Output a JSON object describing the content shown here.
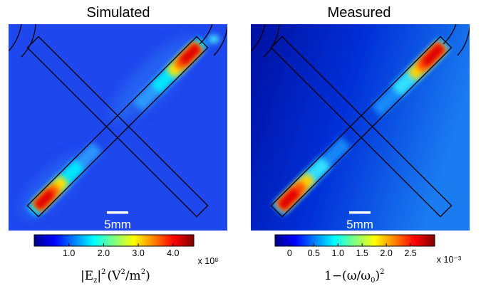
{
  "panels": [
    {
      "title": "Simulated",
      "scale_bar_label": "5mm",
      "colorbar": {
        "colors": [
          "#00008f",
          "#0000ff",
          "#0080ff",
          "#00ffff",
          "#80ff80",
          "#ffff00",
          "#ff8000",
          "#ff0000",
          "#800000"
        ],
        "ticks": [
          "1.0",
          "2.0",
          "3.0",
          "4.0"
        ],
        "tick_values": [
          1.0,
          2.0,
          3.0,
          4.0
        ],
        "range": [
          0,
          4.6
        ],
        "exponent": "x 10⁸"
      },
      "formula_parts": [
        "|E",
        "z",
        "|",
        "2",
        "(V",
        "2",
        "/m",
        "2",
        ")"
      ]
    },
    {
      "title": "Measured",
      "scale_bar_label": "5mm",
      "colorbar": {
        "colors": [
          "#00008f",
          "#0000ff",
          "#0080ff",
          "#00ffff",
          "#80ff80",
          "#ffff00",
          "#ff8000",
          "#ff0000",
          "#800000"
        ],
        "ticks": [
          "0",
          "0.5",
          "1.0",
          "1.5",
          "2.0",
          "2.5"
        ],
        "tick_values": [
          0,
          0.5,
          1.0,
          1.5,
          2.0,
          2.5
        ],
        "range": [
          -0.3,
          3.0
        ],
        "exponent": "x 10⁻³"
      },
      "formula_parts": [
        "1−(ω/ω",
        "0",
        ")",
        "2"
      ]
    }
  ]
}
